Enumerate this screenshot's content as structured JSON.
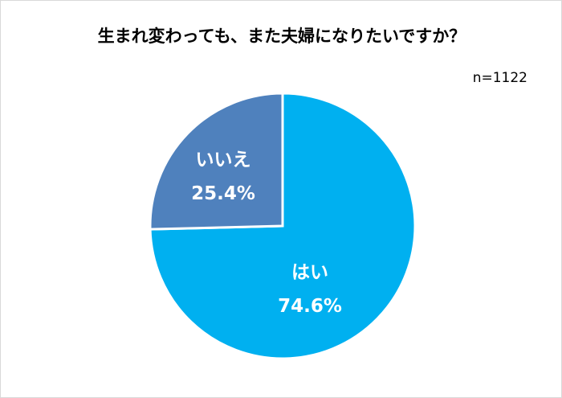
{
  "chart_data": {
    "type": "pie",
    "title": "生まれ変わっても、また夫婦になりたいですか？",
    "annotation": "n=1122",
    "slices": [
      {
        "label": "はい",
        "value": 74.6,
        "value_label": "74.6%",
        "color": "#00B0F0"
      },
      {
        "label": "いいえ",
        "value": 25.4,
        "value_label": "25.4%",
        "color": "#4F81BD"
      }
    ],
    "start_angle": "12 o'clock, clockwise",
    "legend": "none"
  }
}
